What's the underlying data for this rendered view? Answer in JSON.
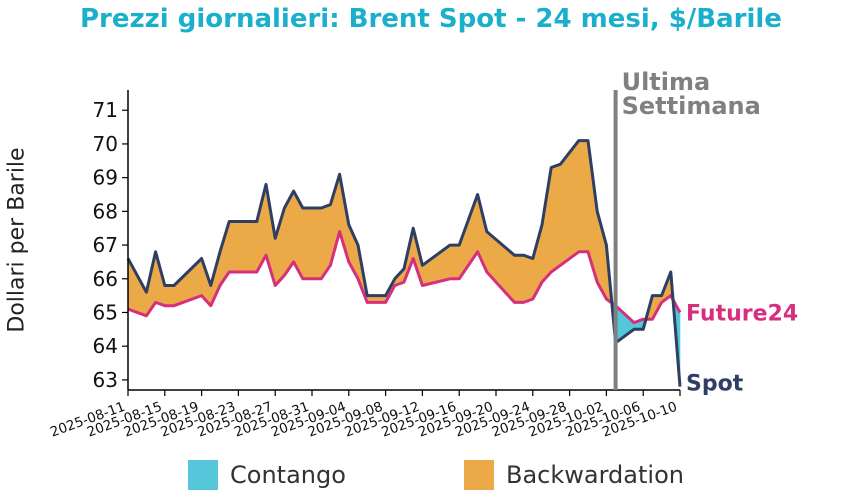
{
  "chart_data": {
    "type": "area",
    "title": "Prezzi giornalieri: Brent Spot - 24 mesi, $/Barile",
    "ylabel": "Dollari per Barile",
    "xlabel": "",
    "ylim": [
      62.7,
      71.6
    ],
    "yticks": [
      63,
      64,
      65,
      66,
      67,
      68,
      69,
      70,
      71
    ],
    "x_ticks": [
      "2025-08-11",
      "2025-08-15",
      "2025-08-19",
      "2025-08-23",
      "2025-08-27",
      "2025-08-31",
      "2025-09-04",
      "2025-09-08",
      "2025-09-12",
      "2025-09-16",
      "2025-09-20",
      "2025-09-24",
      "2025-09-28",
      "2025-10-02",
      "2025-10-06",
      "2025-10-10"
    ],
    "x_start": "2025-08-11",
    "x_end": "2025-10-10",
    "annotation": {
      "text_line1": "Ultima",
      "text_line2": "Settimana",
      "x": "2025-10-03"
    },
    "series": [
      {
        "name": "Spot",
        "color": "#2e3f63",
        "x": [
          "2025-08-11",
          "2025-08-13",
          "2025-08-14",
          "2025-08-15",
          "2025-08-16",
          "2025-08-19",
          "2025-08-20",
          "2025-08-21",
          "2025-08-22",
          "2025-08-25",
          "2025-08-26",
          "2025-08-27",
          "2025-08-28",
          "2025-08-29",
          "2025-08-30",
          "2025-09-01",
          "2025-09-02",
          "2025-09-03",
          "2025-09-04",
          "2025-09-05",
          "2025-09-06",
          "2025-09-08",
          "2025-09-09",
          "2025-09-10",
          "2025-09-11",
          "2025-09-12",
          "2025-09-15",
          "2025-09-16",
          "2025-09-18",
          "2025-09-19",
          "2025-09-22",
          "2025-09-23",
          "2025-09-24",
          "2025-09-25",
          "2025-09-26",
          "2025-09-27",
          "2025-09-29",
          "2025-09-30",
          "2025-10-01",
          "2025-10-02",
          "2025-10-03",
          "2025-10-05",
          "2025-10-06",
          "2025-10-07",
          "2025-10-08",
          "2025-10-09",
          "2025-10-10"
        ],
        "values": [
          66.6,
          65.6,
          66.8,
          65.8,
          65.8,
          66.6,
          65.8,
          66.8,
          67.7,
          67.7,
          68.8,
          67.2,
          68.1,
          68.6,
          68.1,
          68.1,
          68.2,
          69.1,
          67.6,
          67.0,
          65.5,
          65.5,
          66.0,
          66.3,
          67.5,
          66.4,
          67.0,
          67.0,
          68.5,
          67.4,
          66.7,
          66.7,
          66.6,
          67.6,
          69.3,
          69.4,
          70.1,
          70.1,
          68.0,
          67.0,
          64.1,
          64.5,
          64.5,
          65.5,
          65.5,
          66.2,
          62.8
        ]
      },
      {
        "name": "Future24",
        "color": "#d62f7e",
        "x": [
          "2025-08-11",
          "2025-08-13",
          "2025-08-14",
          "2025-08-15",
          "2025-08-16",
          "2025-08-19",
          "2025-08-20",
          "2025-08-21",
          "2025-08-22",
          "2025-08-25",
          "2025-08-26",
          "2025-08-27",
          "2025-08-28",
          "2025-08-29",
          "2025-08-30",
          "2025-09-01",
          "2025-09-02",
          "2025-09-03",
          "2025-09-04",
          "2025-09-05",
          "2025-09-06",
          "2025-09-08",
          "2025-09-09",
          "2025-09-10",
          "2025-09-11",
          "2025-09-12",
          "2025-09-15",
          "2025-09-16",
          "2025-09-18",
          "2025-09-19",
          "2025-09-22",
          "2025-09-23",
          "2025-09-24",
          "2025-09-25",
          "2025-09-26",
          "2025-09-27",
          "2025-09-29",
          "2025-09-30",
          "2025-10-01",
          "2025-10-02",
          "2025-10-03",
          "2025-10-05",
          "2025-10-06",
          "2025-10-07",
          "2025-10-08",
          "2025-10-09",
          "2025-10-10"
        ],
        "values": [
          65.1,
          64.9,
          65.3,
          65.2,
          65.2,
          65.5,
          65.2,
          65.8,
          66.2,
          66.2,
          66.7,
          65.8,
          66.1,
          66.5,
          66.0,
          66.0,
          66.4,
          67.4,
          66.5,
          66.0,
          65.3,
          65.3,
          65.8,
          65.9,
          66.6,
          65.8,
          66.0,
          66.0,
          66.8,
          66.2,
          65.3,
          65.3,
          65.4,
          65.9,
          66.2,
          66.4,
          66.8,
          66.8,
          65.9,
          65.4,
          65.2,
          64.7,
          64.8,
          64.8,
          65.3,
          65.5,
          65.0
        ]
      }
    ],
    "fill_legend": [
      {
        "name": "Contango",
        "color": "#56c7da"
      },
      {
        "name": "Backwardation",
        "color": "#eba947"
      }
    ]
  }
}
